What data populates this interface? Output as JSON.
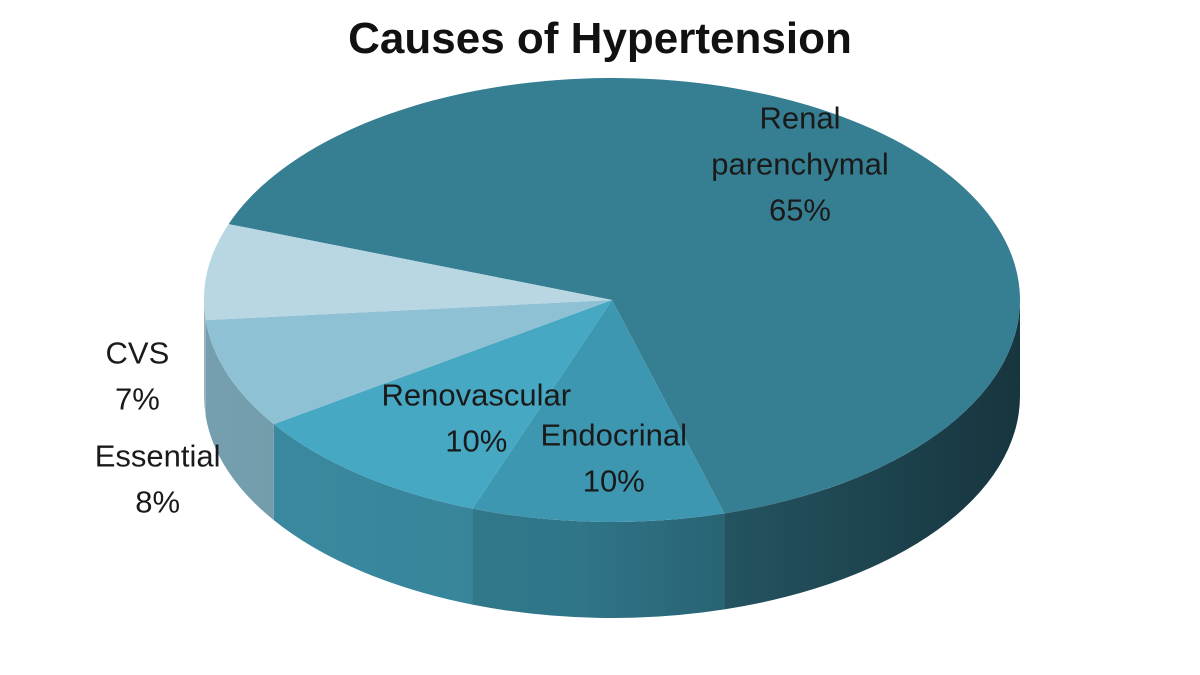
{
  "chart_data": {
    "type": "pie",
    "title": "Causes of Hypertension",
    "slices": [
      {
        "label": "Renal parenchymal",
        "label_lines": [
          "Renal",
          "parenchymal"
        ],
        "value_label": "65%",
        "value": 65,
        "color": "#367f93"
      },
      {
        "label": "Endocrinal",
        "label_lines": [
          "Endocrinal"
        ],
        "value_label": "10%",
        "value": 10,
        "color": "#3e97b0"
      },
      {
        "label": "Renovascular",
        "label_lines": [
          "Renovascular"
        ],
        "value_label": "10%",
        "value": 10,
        "color": "#47a8c4"
      },
      {
        "label": "Essential",
        "label_lines": [
          "Essential"
        ],
        "value_label": "8%",
        "value": 8,
        "color": "#8fc1d4"
      },
      {
        "label": "CVS",
        "label_lines": [
          "CVS"
        ],
        "value_label": "7%",
        "value": 7,
        "color": "#b9d7e3"
      }
    ]
  }
}
